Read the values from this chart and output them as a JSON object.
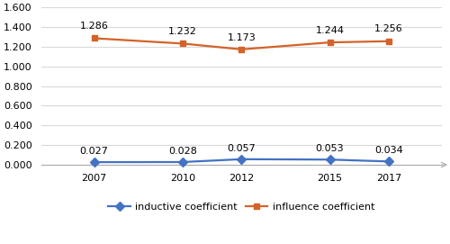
{
  "years": [
    2007,
    2010,
    2012,
    2015,
    2017
  ],
  "inductive_values": [
    0.027,
    0.028,
    0.057,
    0.053,
    0.034
  ],
  "influence_values": [
    1.286,
    1.232,
    1.173,
    1.244,
    1.256
  ],
  "inductive_label": "inductive coefficient",
  "influence_label": "influence coefficient",
  "inductive_color": "#4472C4",
  "influence_color": "#D4622A",
  "ylim": [
    0.0,
    1.6
  ],
  "yticks": [
    0.0,
    0.2,
    0.4,
    0.6,
    0.8,
    1.0,
    1.2,
    1.4,
    1.6
  ],
  "ytick_labels": [
    "0.000",
    "0.200",
    "0.400",
    "0.600",
    "0.800",
    "1.000",
    "1.200",
    "1.400",
    "1.600"
  ],
  "grid_color": "#D9D9D9",
  "background_color": "#FFFFFF",
  "inductive_marker": "D",
  "influence_marker": "s",
  "marker_size": 5,
  "line_width": 1.6,
  "label_fontsize": 8,
  "tick_fontsize": 8,
  "legend_fontsize": 8
}
